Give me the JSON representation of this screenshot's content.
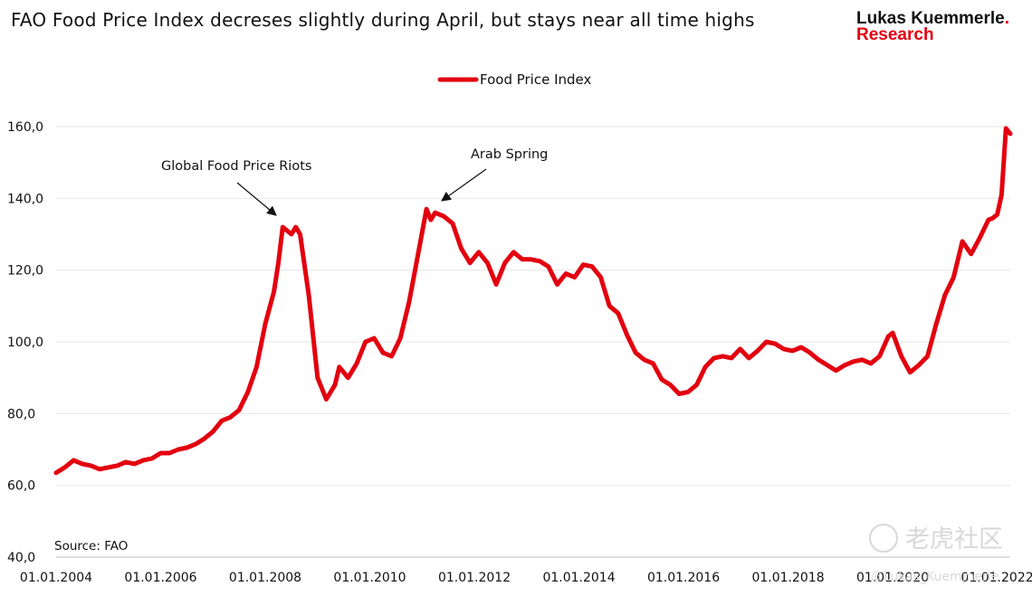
{
  "header": {
    "title": "FAO Food Price Index decreses slightly during April, but stays near all time highs",
    "brand_line1": "Lukas Kuemmerle",
    "brand_dot": ".",
    "brand_line2": "Research"
  },
  "source": "Source: FAO",
  "watermark": {
    "text": "老虎社区",
    "handle": "@Lukas_Kuemmerle"
  },
  "colors": {
    "series": "#e3000f",
    "grid": "#e6e6e6"
  },
  "chart_data": {
    "type": "line",
    "title": "FAO Food Price Index decreses slightly during April, but stays near all time highs",
    "xlabel": "",
    "ylabel": "",
    "ylim": [
      40,
      160
    ],
    "xlim": [
      "2004-01",
      "2022-04"
    ],
    "grid": true,
    "legend_placement": "top-center",
    "yticks": [
      "40,0",
      "60,0",
      "80,0",
      "100,0",
      "120,0",
      "140,0",
      "160,0"
    ],
    "xticks": [
      "01.01.2004",
      "01.01.2006",
      "01.01.2008",
      "01.01.2010",
      "01.01.2012",
      "01.01.2014",
      "01.01.2016",
      "01.01.2018",
      "01.01.2020",
      "01.01.2022"
    ],
    "annotations": [
      {
        "text": "Global Food Price Riots",
        "x": "2008-04",
        "y": 132
      },
      {
        "text": "Arab Spring",
        "x": "2011-04",
        "y": 135
      }
    ],
    "series": [
      {
        "name": "Food Price Index",
        "points": [
          [
            "2004-01",
            63.5
          ],
          [
            "2004-03",
            65
          ],
          [
            "2004-05",
            67
          ],
          [
            "2004-07",
            66
          ],
          [
            "2004-09",
            65.5
          ],
          [
            "2004-11",
            64.5
          ],
          [
            "2005-01",
            65
          ],
          [
            "2005-03",
            65.5
          ],
          [
            "2005-05",
            66.5
          ],
          [
            "2005-07",
            66
          ],
          [
            "2005-09",
            67
          ],
          [
            "2005-11",
            67.5
          ],
          [
            "2006-01",
            69
          ],
          [
            "2006-03",
            69
          ],
          [
            "2006-05",
            70
          ],
          [
            "2006-07",
            70.5
          ],
          [
            "2006-09",
            71.5
          ],
          [
            "2006-11",
            73
          ],
          [
            "2007-01",
            75
          ],
          [
            "2007-03",
            78
          ],
          [
            "2007-05",
            79
          ],
          [
            "2007-07",
            81
          ],
          [
            "2007-09",
            86
          ],
          [
            "2007-11",
            93
          ],
          [
            "2008-01",
            105
          ],
          [
            "2008-03",
            114
          ],
          [
            "2008-04",
            122
          ],
          [
            "2008-05",
            132
          ],
          [
            "2008-07",
            130
          ],
          [
            "2008-08",
            132
          ],
          [
            "2008-09",
            130
          ],
          [
            "2008-11",
            113
          ],
          [
            "2009-01",
            90
          ],
          [
            "2009-03",
            84
          ],
          [
            "2009-05",
            88
          ],
          [
            "2009-06",
            93
          ],
          [
            "2009-08",
            90
          ],
          [
            "2009-10",
            94
          ],
          [
            "2009-12",
            100
          ],
          [
            "2010-02",
            101
          ],
          [
            "2010-04",
            97
          ],
          [
            "2010-06",
            96
          ],
          [
            "2010-08",
            101
          ],
          [
            "2010-10",
            111
          ],
          [
            "2010-12",
            124
          ],
          [
            "2011-02",
            137
          ],
          [
            "2011-03",
            134
          ],
          [
            "2011-04",
            136
          ],
          [
            "2011-06",
            135
          ],
          [
            "2011-08",
            133
          ],
          [
            "2011-10",
            126
          ],
          [
            "2011-12",
            122
          ],
          [
            "2012-02",
            125
          ],
          [
            "2012-04",
            122
          ],
          [
            "2012-06",
            116
          ],
          [
            "2012-08",
            122
          ],
          [
            "2012-10",
            125
          ],
          [
            "2012-12",
            123
          ],
          [
            "2013-02",
            123
          ],
          [
            "2013-04",
            122.5
          ],
          [
            "2013-06",
            121
          ],
          [
            "2013-08",
            116
          ],
          [
            "2013-10",
            119
          ],
          [
            "2013-12",
            118
          ],
          [
            "2014-02",
            121.5
          ],
          [
            "2014-04",
            121
          ],
          [
            "2014-06",
            118
          ],
          [
            "2014-08",
            110
          ],
          [
            "2014-10",
            108
          ],
          [
            "2014-12",
            102
          ],
          [
            "2015-02",
            97
          ],
          [
            "2015-04",
            95
          ],
          [
            "2015-06",
            94
          ],
          [
            "2015-08",
            89.5
          ],
          [
            "2015-10",
            88
          ],
          [
            "2015-12",
            85.5
          ],
          [
            "2016-02",
            86
          ],
          [
            "2016-04",
            88
          ],
          [
            "2016-06",
            93
          ],
          [
            "2016-08",
            95.5
          ],
          [
            "2016-10",
            96
          ],
          [
            "2016-12",
            95.5
          ],
          [
            "2017-02",
            98
          ],
          [
            "2017-04",
            95.5
          ],
          [
            "2017-06",
            97.5
          ],
          [
            "2017-08",
            100
          ],
          [
            "2017-10",
            99.5
          ],
          [
            "2017-12",
            98
          ],
          [
            "2018-02",
            97.5
          ],
          [
            "2018-04",
            98.5
          ],
          [
            "2018-06",
            97
          ],
          [
            "2018-08",
            95
          ],
          [
            "2018-10",
            93.5
          ],
          [
            "2018-12",
            92
          ],
          [
            "2019-02",
            93.5
          ],
          [
            "2019-04",
            94.5
          ],
          [
            "2019-06",
            95
          ],
          [
            "2019-08",
            94
          ],
          [
            "2019-10",
            96
          ],
          [
            "2019-12",
            101.5
          ],
          [
            "2020-01",
            102.5
          ],
          [
            "2020-03",
            96
          ],
          [
            "2020-05",
            91.5
          ],
          [
            "2020-07",
            93.5
          ],
          [
            "2020-09",
            96
          ],
          [
            "2020-11",
            105
          ],
          [
            "2021-01",
            113
          ],
          [
            "2021-03",
            118
          ],
          [
            "2021-05",
            128
          ],
          [
            "2021-07",
            124.5
          ],
          [
            "2021-09",
            129
          ],
          [
            "2021-11",
            134
          ],
          [
            "2021-12",
            134.5
          ],
          [
            "2022-01",
            135.5
          ],
          [
            "2022-02",
            141
          ],
          [
            "2022-03",
            159.5
          ],
          [
            "2022-04",
            158
          ]
        ]
      }
    ]
  }
}
